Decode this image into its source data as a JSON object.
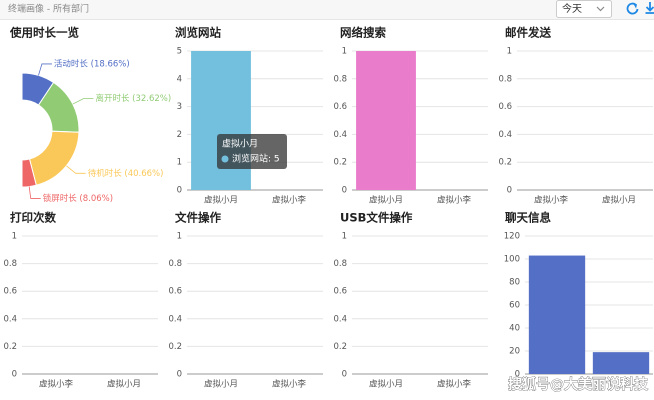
{
  "header": {
    "breadcrumb": "终端画像 - 所有部门",
    "period": "今天"
  },
  "chart_data": [
    {
      "type": "pie",
      "title": "使用时长一览",
      "values": [
        18.66,
        32.62,
        40.66,
        8.06
      ],
      "value_labels": [
        "活动时长 (18.66%)",
        "离开时长 (32.62%)",
        "待机时长 (40.66%)",
        "锁屏时长 (8.06%)"
      ],
      "colors": [
        "#5470c6",
        "#91cc75",
        "#fac858",
        "#ee6666"
      ]
    },
    {
      "type": "bar",
      "title": "浏览网站",
      "categories": [
        "虚拟小月",
        "虚拟小李"
      ],
      "values": [
        5,
        0
      ],
      "color": "#73c0de",
      "ylim": [
        0,
        5
      ],
      "yticks": [
        0,
        1,
        2,
        3,
        4,
        5
      ],
      "tooltip": {
        "title": "虚拟小月",
        "text": "浏览网站: 5"
      }
    },
    {
      "type": "bar",
      "title": "网络搜索",
      "categories": [
        "虚拟小月",
        "虚拟小李"
      ],
      "values": [
        1,
        0
      ],
      "color": "#ea7ccc",
      "ylim": [
        0,
        1
      ],
      "yticks": [
        0,
        0.2,
        0.4,
        0.6,
        0.8,
        1
      ]
    },
    {
      "type": "bar",
      "title": "邮件发送",
      "categories": [
        "虚拟小李",
        "虚拟小月"
      ],
      "values": [
        0,
        0
      ],
      "ylim": [
        0,
        1
      ],
      "yticks": [
        0,
        0.2,
        0.4,
        0.6,
        0.8,
        1
      ]
    },
    {
      "type": "bar",
      "title": "打印次数",
      "categories": [
        "虚拟小李",
        "虚拟小月"
      ],
      "values": [
        0,
        0
      ],
      "ylim": [
        0,
        1
      ],
      "yticks": [
        0,
        0.2,
        0.4,
        0.6,
        0.8,
        1
      ]
    },
    {
      "type": "bar",
      "title": "文件操作",
      "categories": [
        "虚拟小月",
        "虚拟小李"
      ],
      "values": [
        0,
        0
      ],
      "ylim": [
        0,
        1
      ],
      "yticks": [
        0,
        0.2,
        0.4,
        0.6,
        0.8,
        1
      ]
    },
    {
      "type": "bar",
      "title": "USB文件操作",
      "categories": [
        "虚拟小月",
        "虚拟小李"
      ],
      "values": [
        0,
        0
      ],
      "ylim": [
        0,
        1
      ],
      "yticks": [
        0,
        0.2,
        0.4,
        0.6,
        0.8,
        1
      ]
    },
    {
      "type": "bar",
      "title": "聊天信息",
      "categories": [
        null,
        null
      ],
      "values": [
        103,
        19
      ],
      "color": "#5470c6",
      "ylim": [
        0,
        120
      ],
      "yticks": [
        0,
        20,
        40,
        60,
        80,
        100,
        120
      ]
    }
  ],
  "watermark": "搜狐号@大美丽说科技"
}
